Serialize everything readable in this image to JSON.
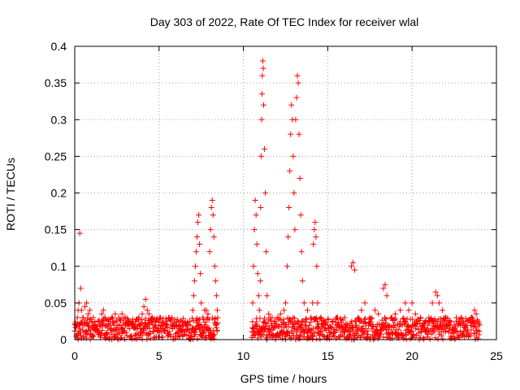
{
  "chart_data": {
    "type": "scatter",
    "title": "Day 303 of 2022, Rate Of TEC Index for receiver wlal",
    "xlabel": "GPS time / hours",
    "ylabel": "ROTI / TECUs",
    "xlim": [
      0,
      25
    ],
    "ylim": [
      0,
      0.4
    ],
    "xticks": [
      0,
      5,
      10,
      15,
      20,
      25
    ],
    "xtick_labels": [
      "0",
      "5",
      "10",
      "15",
      "20",
      "25"
    ],
    "yticks": [
      0,
      0.05,
      0.1,
      0.15,
      0.2,
      0.25,
      0.3,
      0.35,
      0.4
    ],
    "ytick_labels": [
      "0",
      "0.05",
      "0.1",
      "0.15",
      "0.2",
      "0.25",
      "0.3",
      "0.35",
      "0.4"
    ],
    "grid": true,
    "marker": "+",
    "color": "#ff0000",
    "series": [
      {
        "name": "ROTI",
        "points": [
          [
            0.05,
            0.02
          ],
          [
            0.15,
            0.03
          ],
          [
            0.2,
            0.04
          ],
          [
            0.25,
            0.05
          ],
          [
            0.3,
            0.145
          ],
          [
            0.35,
            0.07
          ],
          [
            0.4,
            0.04
          ],
          [
            0.5,
            0.03
          ],
          [
            0.6,
            0.045
          ],
          [
            0.7,
            0.05
          ],
          [
            0.8,
            0.035
          ],
          [
            0.9,
            0.04
          ],
          [
            1.0,
            0.025
          ],
          [
            1.1,
            0.03
          ],
          [
            1.2,
            0.02
          ],
          [
            1.4,
            0.025
          ],
          [
            1.6,
            0.035
          ],
          [
            1.7,
            0.04
          ],
          [
            1.8,
            0.03
          ],
          [
            2.0,
            0.025
          ],
          [
            2.2,
            0.03
          ],
          [
            2.4,
            0.035
          ],
          [
            2.6,
            0.03
          ],
          [
            2.8,
            0.035
          ],
          [
            3.0,
            0.03
          ],
          [
            3.2,
            0.025
          ],
          [
            3.4,
            0.02
          ],
          [
            3.6,
            0.025
          ],
          [
            3.8,
            0.03
          ],
          [
            4.0,
            0.035
          ],
          [
            4.1,
            0.045
          ],
          [
            4.2,
            0.055
          ],
          [
            4.3,
            0.04
          ],
          [
            4.4,
            0.035
          ],
          [
            4.6,
            0.03
          ],
          [
            4.8,
            0.025
          ],
          [
            5.0,
            0.02
          ],
          [
            5.2,
            0.015
          ],
          [
            5.5,
            0.02
          ],
          [
            5.8,
            0.015
          ],
          [
            6.0,
            0.02
          ],
          [
            6.2,
            0.015
          ],
          [
            6.4,
            0.02
          ],
          [
            6.6,
            0.02
          ],
          [
            6.8,
            0.025
          ],
          [
            7.0,
            0.04
          ],
          [
            7.05,
            0.06
          ],
          [
            7.1,
            0.08
          ],
          [
            7.15,
            0.1
          ],
          [
            7.2,
            0.12
          ],
          [
            7.25,
            0.14
          ],
          [
            7.3,
            0.16
          ],
          [
            7.35,
            0.17
          ],
          [
            7.4,
            0.13
          ],
          [
            7.45,
            0.09
          ],
          [
            7.5,
            0.05
          ],
          [
            7.6,
            0.03
          ],
          [
            7.7,
            0.04
          ],
          [
            7.8,
            0.04
          ],
          [
            7.9,
            0.035
          ],
          [
            8.0,
            0.12
          ],
          [
            8.05,
            0.15
          ],
          [
            8.1,
            0.18
          ],
          [
            8.15,
            0.19
          ],
          [
            8.2,
            0.17
          ],
          [
            8.25,
            0.14
          ],
          [
            8.3,
            0.1
          ],
          [
            8.35,
            0.08
          ],
          [
            8.4,
            0.06
          ],
          [
            8.45,
            0.04
          ],
          [
            10.55,
            0.05
          ],
          [
            10.6,
            0.1
          ],
          [
            10.65,
            0.15
          ],
          [
            10.7,
            0.19
          ],
          [
            10.75,
            0.17
          ],
          [
            10.8,
            0.13
          ],
          [
            10.85,
            0.09
          ],
          [
            10.9,
            0.06
          ],
          [
            10.95,
            0.04
          ],
          [
            11.0,
            0.08
          ],
          [
            11.02,
            0.18
          ],
          [
            11.05,
            0.25
          ],
          [
            11.08,
            0.3
          ],
          [
            11.1,
            0.335
          ],
          [
            11.12,
            0.36
          ],
          [
            11.15,
            0.38
          ],
          [
            11.18,
            0.37
          ],
          [
            11.2,
            0.32
          ],
          [
            11.25,
            0.26
          ],
          [
            11.3,
            0.2
          ],
          [
            11.35,
            0.12
          ],
          [
            11.4,
            0.06
          ],
          [
            11.5,
            0.035
          ],
          [
            11.7,
            0.03
          ],
          [
            11.9,
            0.025
          ],
          [
            12.0,
            0.03
          ],
          [
            12.2,
            0.035
          ],
          [
            12.4,
            0.04
          ],
          [
            12.5,
            0.05
          ],
          [
            12.6,
            0.1
          ],
          [
            12.65,
            0.14
          ],
          [
            12.7,
            0.18
          ],
          [
            12.75,
            0.23
          ],
          [
            12.8,
            0.28
          ],
          [
            12.85,
            0.32
          ],
          [
            12.9,
            0.3
          ],
          [
            12.95,
            0.25
          ],
          [
            13.0,
            0.2
          ],
          [
            13.05,
            0.15
          ],
          [
            13.1,
            0.3
          ],
          [
            13.15,
            0.33
          ],
          [
            13.2,
            0.36
          ],
          [
            13.25,
            0.35
          ],
          [
            13.3,
            0.28
          ],
          [
            13.35,
            0.22
          ],
          [
            13.4,
            0.17
          ],
          [
            13.45,
            0.12
          ],
          [
            13.5,
            0.08
          ],
          [
            13.6,
            0.05
          ],
          [
            13.8,
            0.04
          ],
          [
            14.0,
            0.03
          ],
          [
            14.1,
            0.05
          ],
          [
            14.15,
            0.13
          ],
          [
            14.2,
            0.15
          ],
          [
            14.25,
            0.16
          ],
          [
            14.3,
            0.14
          ],
          [
            14.35,
            0.1
          ],
          [
            14.4,
            0.05
          ],
          [
            14.6,
            0.03
          ],
          [
            14.8,
            0.025
          ],
          [
            15.0,
            0.02
          ],
          [
            15.5,
            0.02
          ],
          [
            16.0,
            0.03
          ],
          [
            16.4,
            0.1
          ],
          [
            16.5,
            0.105
          ],
          [
            16.6,
            0.095
          ],
          [
            16.8,
            0.03
          ],
          [
            17.0,
            0.04
          ],
          [
            17.2,
            0.05
          ],
          [
            17.5,
            0.03
          ],
          [
            17.8,
            0.04
          ],
          [
            18.0,
            0.035
          ],
          [
            18.3,
            0.07
          ],
          [
            18.4,
            0.075
          ],
          [
            18.5,
            0.06
          ],
          [
            18.8,
            0.03
          ],
          [
            19.0,
            0.035
          ],
          [
            19.3,
            0.04
          ],
          [
            19.6,
            0.05
          ],
          [
            19.8,
            0.04
          ],
          [
            20.0,
            0.05
          ],
          [
            20.2,
            0.035
          ],
          [
            20.5,
            0.03
          ],
          [
            20.8,
            0.025
          ],
          [
            21.0,
            0.03
          ],
          [
            21.2,
            0.05
          ],
          [
            21.4,
            0.065
          ],
          [
            21.5,
            0.06
          ],
          [
            21.6,
            0.05
          ],
          [
            21.8,
            0.04
          ],
          [
            22.0,
            0.03
          ],
          [
            22.2,
            0.025
          ],
          [
            22.5,
            0.02
          ],
          [
            22.8,
            0.025
          ],
          [
            23.0,
            0.02
          ],
          [
            23.3,
            0.025
          ],
          [
            23.5,
            0.03
          ],
          [
            23.7,
            0.04
          ],
          [
            23.8,
            0.035
          ],
          [
            24.0,
            0.02
          ]
        ]
      }
    ],
    "dense_bands": [
      {
        "x": [
          0.0,
          8.5
        ],
        "ymin": 0.0,
        "ymax": 0.03
      },
      {
        "x": [
          10.5,
          24.0
        ],
        "ymin": 0.0,
        "ymax": 0.03
      }
    ]
  }
}
